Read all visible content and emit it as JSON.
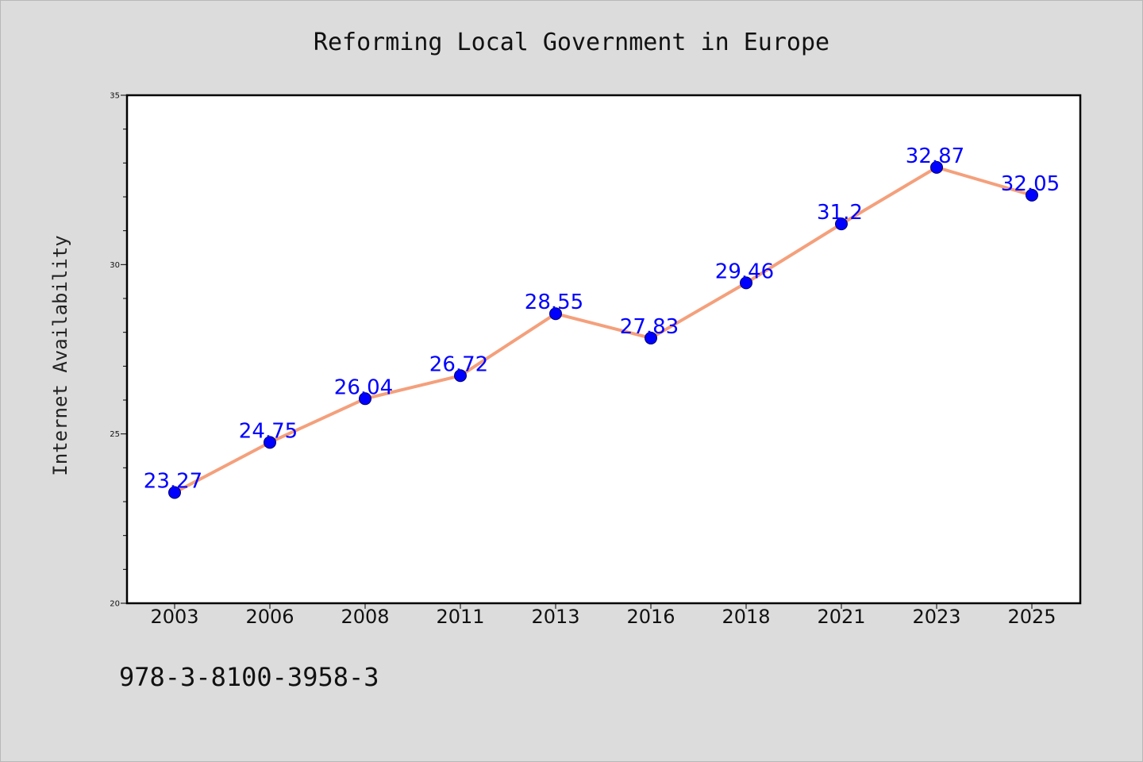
{
  "chart_data": {
    "type": "line",
    "title": "Reforming Local Government in Europe",
    "xlabel": "",
    "ylabel": "Internet Availability",
    "categories": [
      "2003",
      "2006",
      "2008",
      "2011",
      "2013",
      "2016",
      "2018",
      "2021",
      "2023",
      "2025"
    ],
    "series": [
      {
        "values": [
          23.27,
          24.75,
          26.04,
          26.72,
          28.55,
          27.83,
          29.46,
          31.2,
          32.87,
          32.05
        ],
        "labels": [
          "23.27",
          "24.75",
          "26.04",
          "26.72",
          "28.55",
          "27.83",
          "29.46",
          "31.2",
          "32.87",
          "32.05"
        ],
        "line_color": "#f4a07c",
        "marker_color": "#0000ff"
      }
    ],
    "ylim": [
      20,
      35
    ],
    "yticks": [
      "20",
      "25",
      "30",
      "35"
    ],
    "grid": false,
    "legend": "none"
  },
  "annotation": "978-3-8100-3958-3"
}
